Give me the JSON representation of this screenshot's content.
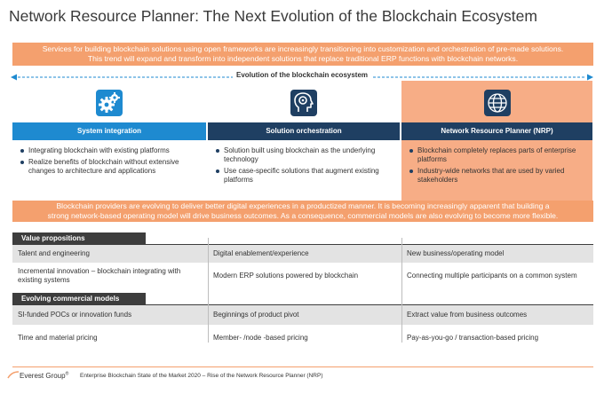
{
  "title": "Network Resource Planner: The Next Evolution of the Blockchain Ecosystem",
  "intro": {
    "line1": "Services for building blockchain solutions using open frameworks are increasingly transitioning into customization and orchestration of pre-made solutions.",
    "line2": "This trend will expand and transform into independent solutions that replace traditional ERP functions with blockchain networks."
  },
  "evolution_label": "Evolution of the blockchain ecosystem",
  "columns": [
    {
      "heading": "System integration",
      "icon": "gears-icon",
      "bullets": [
        "Integrating blockchain with existing platforms",
        "Realize benefits of blockchain without extensive changes to architecture and applications"
      ]
    },
    {
      "heading": "Solution orchestration",
      "icon": "head-gear-icon",
      "bullets": [
        "Solution built using blockchain as the underlying technology",
        "Use case-specific solutions that augment existing platforms"
      ]
    },
    {
      "heading": "Network Resource Planner (NRP)",
      "icon": "globe-network-icon",
      "bullets": [
        "Blockchain completely replaces parts of enterprise platforms",
        "Industry-wide networks that are used by varied stakeholders"
      ]
    }
  ],
  "mid": {
    "line1": "Blockchain providers are evolving to deliver better digital experiences in a productized manner. It is becoming increasingly apparent that building a",
    "line2": "strong network-based operating model will drive business outcomes. As a consequence, commercial models are also evolving to become more flexible."
  },
  "value_propositions": {
    "label": "Value propositions",
    "rows": [
      [
        "Talent and engineering",
        "Digital enablement/experience",
        "New business/operating model"
      ],
      [
        "Incremental innovation – blockchain integrating with existing systems",
        "Modern ERP solutions powered by blockchain",
        "Connecting multiple participants on a common system"
      ]
    ]
  },
  "commercial_models": {
    "label": "Evolving commercial models",
    "rows": [
      [
        "SI-funded POCs or innovation funds",
        "Beginnings of product pivot",
        "Extract value from business outcomes"
      ],
      [
        "Time and material pricing",
        "Member- /node -based pricing",
        "Pay-as-you-go / transaction-based pricing"
      ]
    ]
  },
  "footer": {
    "logo": "Everest Group",
    "logo_mark": "®",
    "text": "Enterprise Blockchain State of the Market 2020 – Rise of the Network Resource Planner (NRP)"
  },
  "colors": {
    "orange": "#f4a06e",
    "nrp_shade": "#f7ad86",
    "blue": "#1e8ad0",
    "navy": "#1f3f62",
    "dark_label": "#3d3d3d",
    "row_shade": "#e3e3e3"
  }
}
